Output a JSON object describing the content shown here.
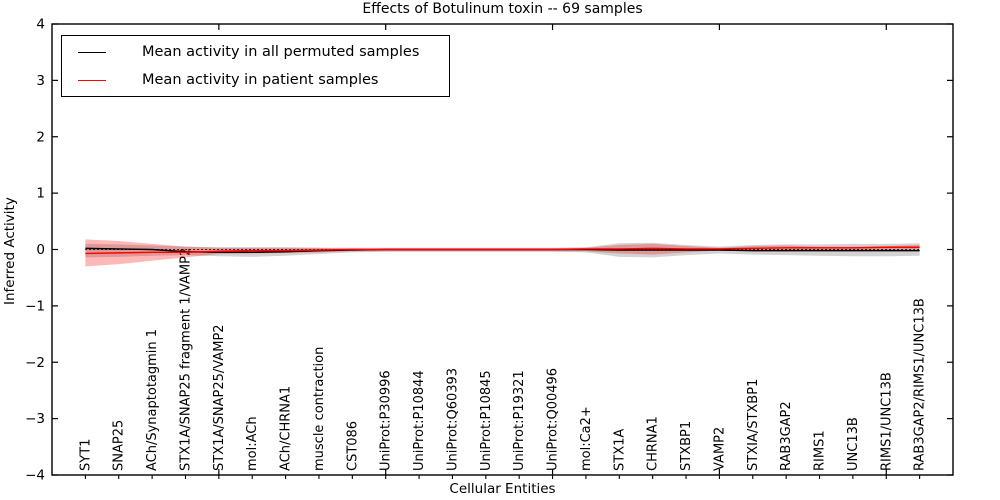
{
  "chart_data": {
    "type": "line",
    "title": "Effects of Botulinum toxin -- 69 samples",
    "xlabel": "Cellular Entities",
    "ylabel": "Inferred Activity",
    "ylim": [
      -4,
      4
    ],
    "yticks": [
      4,
      3,
      2,
      1,
      0,
      -1,
      -2,
      -3,
      -4
    ],
    "grid": false,
    "legend_position": "upper-left",
    "categories": [
      "SYT1",
      "SNAP25",
      "ACh/Synaptotagmin 1",
      "STX1A/SNAP25 fragment 1/VAMP2",
      "STX1A/SNAP25/VAMP2",
      "mol:ACh",
      "ACh/CHRNA1",
      "muscle contraction",
      "CST086",
      "UniProt:P30996",
      "UniProt:P10844",
      "UniProt:Q60393",
      "UniProt:P10845",
      "UniProt:P19321",
      "UniProt:Q00496",
      "mol:Ca2+",
      "STX1A",
      "CHRNA1",
      "STXBP1",
      "VAMP2",
      "STXIA/STXBP1",
      "RAB3GAP2",
      "RIMS1",
      "UNC13B",
      "RIMS1/UNC13B",
      "RAB3GAP2/RIMS1/UNC13B"
    ],
    "top_ticks_at": [
      5,
      10,
      15,
      20,
      25
    ],
    "zero_line": {
      "y": 0,
      "style": "dotted",
      "color": "#000000"
    },
    "legend": {
      "entries": [
        {
          "label": "Mean activity in all permuted samples",
          "color": "#000000"
        },
        {
          "label": "Mean activity in patient samples",
          "color": "#ff0000"
        }
      ]
    },
    "series": [
      {
        "name": "permuted-std-band",
        "type": "band",
        "color": "rgba(110,110,110,0.30)",
        "upper": [
          0.1,
          0.09,
          0.07,
          0.05,
          0.04,
          0.04,
          0.04,
          0.03,
          0.03,
          0.03,
          0.03,
          0.03,
          0.03,
          0.03,
          0.03,
          0.04,
          0.11,
          0.12,
          0.08,
          0.05,
          0.08,
          0.09,
          0.09,
          0.1,
          0.1,
          0.11
        ],
        "lower": [
          -0.14,
          -0.13,
          -0.11,
          -0.1,
          -0.12,
          -0.13,
          -0.11,
          -0.08,
          -0.05,
          -0.04,
          -0.04,
          -0.04,
          -0.04,
          -0.04,
          -0.04,
          -0.05,
          -0.13,
          -0.14,
          -0.1,
          -0.07,
          -0.09,
          -0.1,
          -0.11,
          -0.12,
          -0.12,
          -0.11
        ]
      },
      {
        "name": "patient-std-band",
        "type": "band",
        "color": "rgba(255,0,0,0.28)",
        "upper": [
          0.18,
          0.15,
          0.1,
          0.05,
          0.03,
          0.03,
          0.03,
          0.03,
          0.02,
          0.02,
          0.02,
          0.02,
          0.02,
          0.02,
          0.02,
          0.03,
          0.08,
          0.1,
          0.06,
          0.03,
          0.06,
          0.07,
          0.05,
          0.05,
          0.06,
          0.08
        ],
        "lower": [
          -0.3,
          -0.26,
          -0.2,
          -0.14,
          -0.08,
          -0.07,
          -0.06,
          -0.05,
          -0.03,
          -0.03,
          -0.03,
          -0.03,
          -0.03,
          -0.03,
          -0.03,
          -0.03,
          -0.07,
          -0.09,
          -0.05,
          -0.02,
          -0.03,
          -0.03,
          -0.02,
          -0.01,
          -0.01,
          0.01
        ]
      },
      {
        "name": "Mean activity in all permuted samples",
        "type": "line",
        "color": "#000000",
        "values": [
          0.02,
          0.01,
          0.0,
          -0.04,
          -0.05,
          -0.05,
          -0.04,
          -0.02,
          -0.01,
          0.0,
          0.0,
          0.0,
          0.0,
          0.0,
          0.0,
          0.0,
          -0.01,
          -0.01,
          -0.01,
          -0.01,
          -0.02,
          -0.02,
          -0.02,
          -0.02,
          -0.02,
          -0.02
        ],
        "style": "solid"
      },
      {
        "name": "Mean activity in patient samples",
        "type": "line",
        "color": "#ff0000",
        "values": [
          -0.07,
          -0.06,
          -0.05,
          -0.05,
          -0.03,
          -0.02,
          -0.02,
          -0.01,
          0.0,
          0.0,
          0.0,
          0.0,
          0.0,
          0.0,
          0.0,
          0.01,
          0.01,
          0.02,
          0.01,
          0.01,
          0.02,
          0.03,
          0.03,
          0.03,
          0.04,
          0.04
        ],
        "style": "solid"
      }
    ]
  }
}
